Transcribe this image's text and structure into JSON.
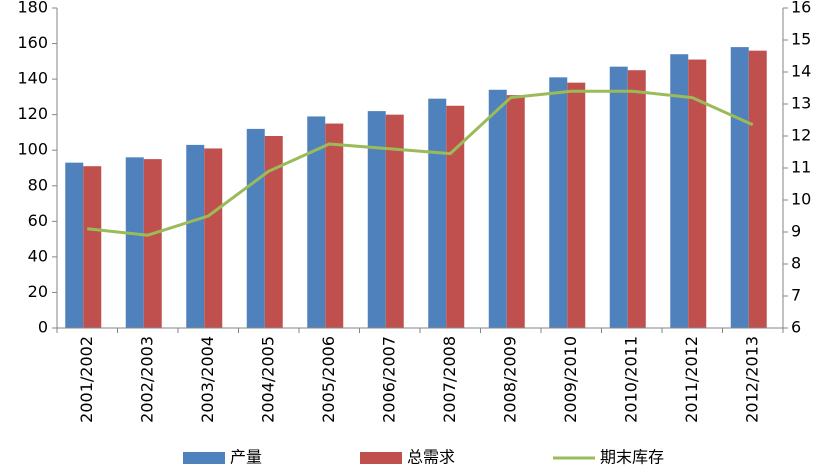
{
  "chart_data": {
    "type": "bar-line",
    "categories": [
      "2001/2002",
      "2002/2003",
      "2003/2004",
      "2004/2005",
      "2005/2006",
      "2006/2007",
      "2007/2008",
      "2008/2009",
      "2009/2010",
      "2010/2011",
      "2011/2012",
      "2012/2013"
    ],
    "series": [
      {
        "name": "产量",
        "type": "bar",
        "color": "#4f81bd",
        "values": [
          93,
          96,
          103,
          112,
          119,
          122,
          129,
          134,
          141,
          147,
          154,
          158
        ]
      },
      {
        "name": "总需求",
        "type": "bar",
        "color": "#c0504d",
        "values": [
          91,
          95,
          101,
          108,
          115,
          120,
          125,
          131,
          138,
          145,
          151,
          156
        ]
      },
      {
        "name": "期末库存",
        "type": "line",
        "axis": "y2",
        "color": "#9bbb59",
        "values": [
          9.1,
          8.9,
          9.5,
          10.9,
          11.75,
          11.6,
          11.45,
          13.2,
          13.4,
          13.4,
          13.2,
          12.35
        ]
      }
    ],
    "ylim": [
      0,
      180
    ],
    "yticks": [
      0,
      20,
      40,
      60,
      80,
      100,
      120,
      140,
      160,
      180
    ],
    "y2lim": [
      6,
      16
    ],
    "y2ticks": [
      6,
      7,
      8,
      9,
      10,
      11,
      12,
      13,
      14,
      15,
      16
    ],
    "legend": "bottom"
  }
}
